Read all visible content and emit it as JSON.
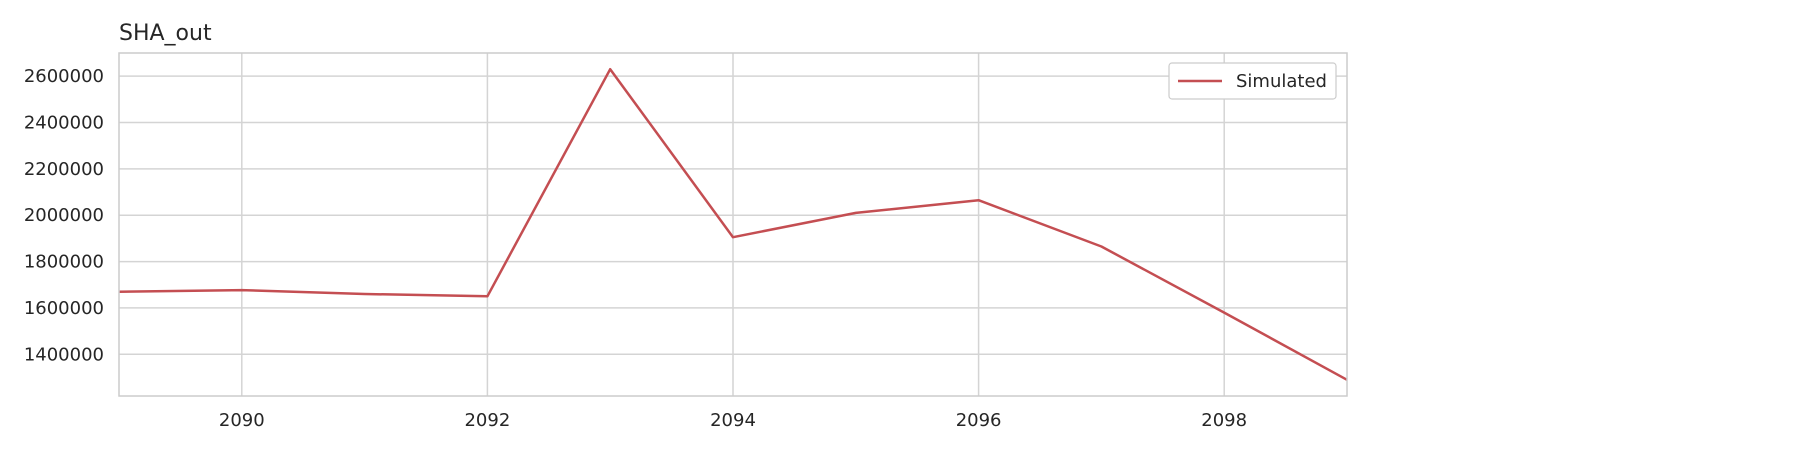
{
  "chart_data": {
    "type": "line",
    "title": "SHA_out",
    "xlabel": "",
    "ylabel": "",
    "xlim": [
      2089,
      2099
    ],
    "ylim": [
      1220000,
      2700000
    ],
    "x_ticks": [
      2090,
      2092,
      2094,
      2096,
      2098
    ],
    "y_ticks": [
      1400000,
      1600000,
      1800000,
      2000000,
      2200000,
      2400000,
      2600000
    ],
    "grid": true,
    "legend_position": "top-right",
    "series": [
      {
        "name": "Simulated",
        "color": "#c44e52",
        "x": [
          2089,
          2090,
          2091,
          2092,
          2093,
          2094,
          2095,
          2096,
          2097,
          2098,
          2099
        ],
        "y": [
          1670000,
          1677000,
          1660000,
          1650000,
          2630000,
          1905000,
          2010000,
          2065000,
          1865000,
          1580000,
          1290000
        ]
      }
    ]
  }
}
